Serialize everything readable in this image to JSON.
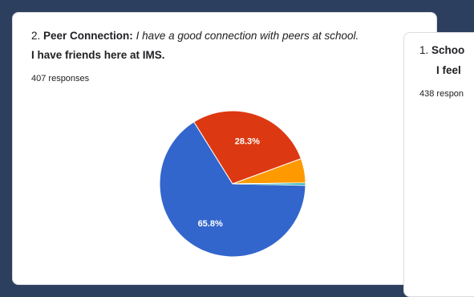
{
  "left_card": {
    "title_number": "2.",
    "title_bold": "Peer Connection:",
    "title_italic": "I have a good connection with peers at school.",
    "subtitle": "I have friends here at IMS.",
    "responses": "407 responses"
  },
  "right_card": {
    "title_number": "1.",
    "title_bold": "Schoo",
    "subtitle": "I feel",
    "responses": "438 respon"
  },
  "colors": {
    "blue": "#3366cc",
    "red": "#dc3912",
    "orange": "#ff9900",
    "teal": "#00a7a7",
    "accent": "#2d3f5e"
  },
  "chart_data": {
    "type": "pie",
    "title": "",
    "slices": [
      {
        "label": "65.8%",
        "value": 65.8,
        "color": "#3366cc",
        "show_label": true
      },
      {
        "label": "28.3%",
        "value": 28.3,
        "color": "#dc3912",
        "show_label": true
      },
      {
        "label": "",
        "value": 5.4,
        "color": "#ff9900",
        "show_label": false
      },
      {
        "label": "",
        "value": 0.5,
        "color": "#00a7a7",
        "show_label": false
      }
    ]
  }
}
